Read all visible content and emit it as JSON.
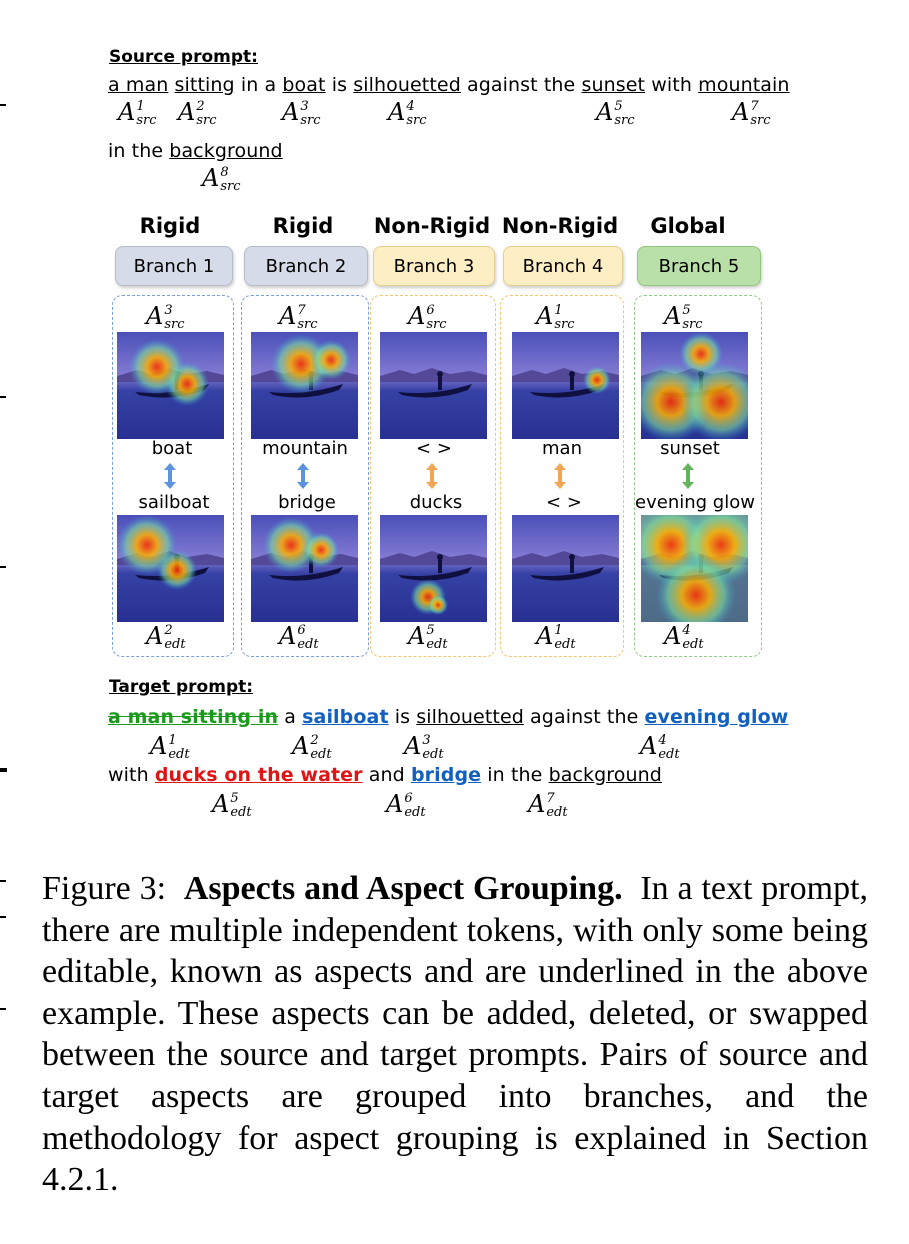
{
  "source": {
    "label": "Source prompt:",
    "line1": [
      {
        "t": "a man",
        "u": true
      },
      {
        "t": " "
      },
      {
        "t": "sitting",
        "u": true
      },
      {
        "t": " in a "
      },
      {
        "t": "boat",
        "u": true
      },
      {
        "t": " is "
      },
      {
        "t": "silhouetted",
        "u": true
      },
      {
        "t": " against the "
      },
      {
        "t": "sunset",
        "u": true
      },
      {
        "t": " with "
      },
      {
        "t": "mountain",
        "u": true
      }
    ],
    "line2": [
      {
        "t": "in the "
      },
      {
        "t": "background",
        "u": true
      }
    ],
    "aspects": [
      {
        "sup": "1",
        "sub": "src"
      },
      {
        "sup": "2",
        "sub": "src"
      },
      {
        "sup": "3",
        "sub": "src"
      },
      {
        "sup": "4",
        "sub": "src"
      },
      {
        "sup": "5",
        "sub": "src"
      },
      {
        "sup": "7",
        "sub": "src"
      },
      {
        "sup": "8",
        "sub": "src"
      }
    ]
  },
  "categories": [
    "Rigid",
    "Rigid",
    "Non-Rigid",
    "Non-Rigid",
    "Global"
  ],
  "branches": [
    {
      "label": "Branch 1",
      "kind": "rigid",
      "src": {
        "sup": "3",
        "sub": "src"
      },
      "edt": {
        "sup": "2",
        "sub": "edt"
      },
      "from": "boat",
      "to": "sailboat",
      "arrow_color": "#5b93de"
    },
    {
      "label": "Branch 2",
      "kind": "rigid",
      "src": {
        "sup": "7",
        "sub": "src"
      },
      "edt": {
        "sup": "6",
        "sub": "edt"
      },
      "from": "mountain",
      "to": "bridge",
      "arrow_color": "#5b93de"
    },
    {
      "label": "Branch 3",
      "kind": "nonrigid",
      "src": {
        "sup": "6",
        "sub": "src"
      },
      "edt": {
        "sup": "5",
        "sub": "edt"
      },
      "from": "< >",
      "to": "ducks",
      "arrow_color": "#f2a654"
    },
    {
      "label": "Branch 4",
      "kind": "nonrigid",
      "src": {
        "sup": "1",
        "sub": "src"
      },
      "edt": {
        "sup": "1",
        "sub": "edt"
      },
      "from": "man",
      "to": "< >",
      "arrow_color": "#f2a654"
    },
    {
      "label": "Branch 5",
      "kind": "global",
      "src": {
        "sup": "5",
        "sub": "src"
      },
      "edt": {
        "sup": "4",
        "sub": "edt"
      },
      "from": "sunset",
      "to": "evening glow",
      "arrow_color": "#64b45a"
    }
  ],
  "target": {
    "label": "Target prompt:",
    "line1": [
      {
        "t": "a man sitting in",
        "s": "strike"
      },
      {
        "t": " a "
      },
      {
        "t": "sailboat",
        "s": "blue"
      },
      {
        "t": " is "
      },
      {
        "t": "silhouetted",
        "s": "u"
      },
      {
        "t": " against the "
      },
      {
        "t": "evening glow",
        "s": "blue"
      }
    ],
    "line2": [
      {
        "t": "with "
      },
      {
        "t": "ducks on the water",
        "s": "red"
      },
      {
        "t": " and "
      },
      {
        "t": "bridge",
        "s": "blue"
      },
      {
        "t": " in the "
      },
      {
        "t": "background",
        "s": "u"
      }
    ],
    "aspects": [
      {
        "sup": "1",
        "sub": "edt"
      },
      {
        "sup": "2",
        "sub": "edt"
      },
      {
        "sup": "3",
        "sub": "edt"
      },
      {
        "sup": "4",
        "sub": "edt"
      },
      {
        "sup": "5",
        "sub": "edt"
      },
      {
        "sup": "6",
        "sub": "edt"
      },
      {
        "sup": "7",
        "sub": "edt"
      }
    ]
  },
  "caption": {
    "figure": "Figure 3:",
    "title": "Aspects and Aspect Grouping.",
    "body": "In a text prompt, there are multiple independent tokens, with only some being editable, known as aspects and are underlined in the above example. These aspects can be added, deleted, or swapped between the source and target prompts. Pairs of source and target aspects are grouped into branches, and the methodology for aspect grouping is explained in Section 4.2.1."
  }
}
